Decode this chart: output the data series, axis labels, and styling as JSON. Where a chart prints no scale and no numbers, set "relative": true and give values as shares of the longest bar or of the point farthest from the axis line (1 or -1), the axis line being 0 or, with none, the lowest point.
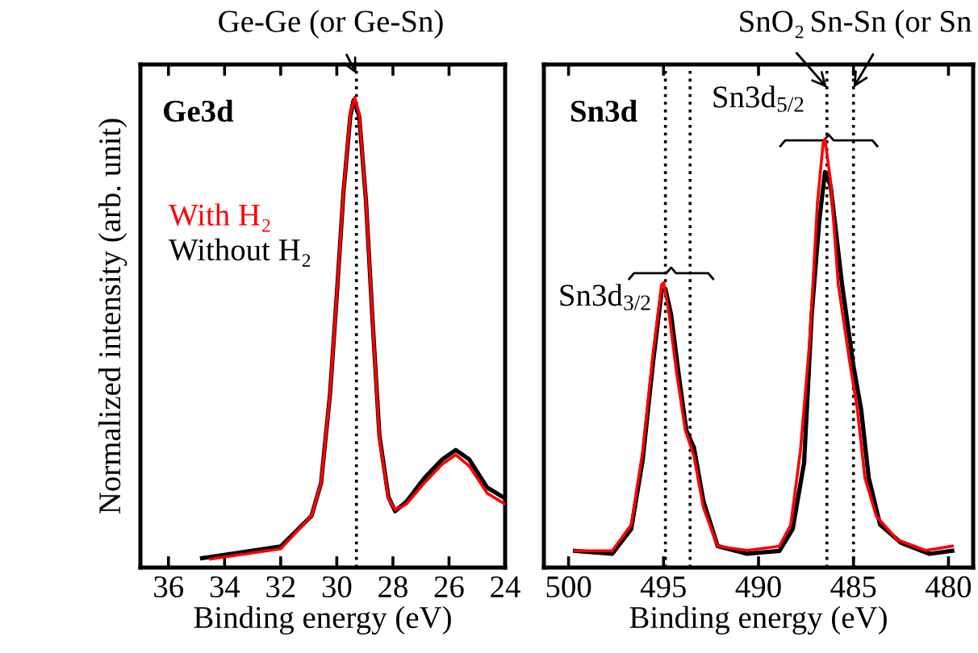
{
  "chart_data": [
    {
      "type": "line",
      "title": "Ge3d",
      "xlabel": "Binding energy (eV)",
      "ylabel": "Normalized intensity (arb. unit)",
      "relative": true,
      "xlim": [
        37,
        24
      ],
      "xticks": [
        36,
        34,
        32,
        30,
        28,
        26,
        24
      ],
      "tick_labels": "x",
      "legend": "left",
      "series": [
        {
          "name": "With H₂",
          "color": "#ff0000",
          "x": [
            34.5,
            32.0,
            30.9,
            30.56,
            30.24,
            30.0,
            29.76,
            29.52,
            29.36,
            29.2,
            28.96,
            28.72,
            28.48,
            28.16,
            27.92,
            27.52,
            26.88,
            26.24,
            25.76,
            25.28,
            24.64,
            24.0
          ],
          "values": [
            0.018,
            0.04,
            0.11,
            0.18,
            0.37,
            0.58,
            0.8,
            0.965,
            1.0,
            0.965,
            0.78,
            0.52,
            0.275,
            0.146,
            0.123,
            0.135,
            0.18,
            0.22,
            0.24,
            0.216,
            0.158,
            0.135
          ]
        },
        {
          "name": "Without H₂",
          "color": "#000000",
          "x": [
            34.8,
            32.0,
            30.9,
            30.56,
            30.24,
            30.0,
            29.76,
            29.52,
            29.4,
            29.2,
            28.96,
            28.72,
            28.48,
            28.16,
            27.92,
            27.52,
            26.88,
            26.24,
            25.76,
            25.28,
            24.64,
            24.0
          ],
          "values": [
            0.02,
            0.045,
            0.11,
            0.18,
            0.37,
            0.58,
            0.8,
            0.96,
            0.994,
            0.96,
            0.78,
            0.52,
            0.28,
            0.15,
            0.12,
            0.14,
            0.19,
            0.23,
            0.25,
            0.23,
            0.17,
            0.147
          ]
        }
      ],
      "ref_lines": [
        {
          "axis": "x",
          "value": 29.3,
          "color": "#000000",
          "line_style": "dotted"
        }
      ],
      "annotations": [
        {
          "text": "Ge-Ge (or Ge-Sn)",
          "x": 29.3,
          "y": 1.05
        }
      ]
    },
    {
      "type": "line",
      "title": "Sn3d",
      "xlabel": "Binding energy (eV)",
      "relative": true,
      "xlim": [
        501.3,
        478.7
      ],
      "xticks": [
        500,
        495,
        490,
        485,
        480
      ],
      "tick_labels": "x",
      "series": [
        {
          "color": "#ff0000",
          "x": [
            499.66,
            497.7,
            496.7,
            496.1,
            495.55,
            495.1,
            494.99,
            494.7,
            494.3,
            493.85,
            493.4,
            492.9,
            492.15,
            490.6,
            488.9,
            488.3,
            487.8,
            487.3,
            486.9,
            486.6,
            486.5,
            486.2,
            485.8,
            485.2,
            484.8,
            484.4,
            483.8,
            482.7,
            481.2,
            479.8
          ],
          "values": [
            0.039,
            0.039,
            0.1,
            0.27,
            0.5,
            0.66,
            0.665,
            0.59,
            0.45,
            0.32,
            0.26,
            0.14,
            0.05,
            0.04,
            0.05,
            0.1,
            0.27,
            0.53,
            0.85,
            0.99,
            1.0,
            0.9,
            0.66,
            0.48,
            0.37,
            0.21,
            0.12,
            0.065,
            0.04,
            0.05
          ]
        },
        {
          "color": "#000000",
          "x": [
            499.66,
            497.7,
            496.7,
            496.1,
            495.55,
            495.1,
            494.9,
            494.6,
            494.2,
            493.8,
            493.4,
            492.9,
            492.15,
            490.6,
            488.9,
            488.2,
            487.6,
            487.2,
            486.8,
            486.5,
            486.2,
            485.6,
            485.0,
            484.6,
            484.2,
            483.6,
            482.5,
            481.0,
            479.8
          ],
          "values": [
            0.039,
            0.032,
            0.09,
            0.25,
            0.48,
            0.645,
            0.65,
            0.59,
            0.45,
            0.32,
            0.28,
            0.155,
            0.05,
            0.032,
            0.039,
            0.09,
            0.245,
            0.59,
            0.81,
            0.923,
            0.89,
            0.66,
            0.47,
            0.37,
            0.21,
            0.1,
            0.058,
            0.032,
            0.039
          ]
        }
      ],
      "ref_lines": [
        {
          "axis": "x",
          "value": 494.9,
          "color": "#000000",
          "line_style": "dotted"
        },
        {
          "axis": "x",
          "value": 493.6,
          "color": "#000000",
          "line_style": "dotted"
        },
        {
          "axis": "x",
          "value": 486.4,
          "color": "#000000",
          "line_style": "dotted"
        },
        {
          "axis": "x",
          "value": 485.0,
          "color": "#000000",
          "line_style": "dotted"
        }
      ],
      "annotations": [
        {
          "text": "SnO₂",
          "x": 486.4,
          "y": 1.12
        },
        {
          "text": "Sn-Sn (or Sn",
          "x": 485.0,
          "y": 1.12
        },
        {
          "text": "Sn3d$_{5/2}$",
          "x": 486.3,
          "y": 1.01
        },
        {
          "text": "Sn3d$_{3/2}$",
          "x": 494.6,
          "y": 0.7
        }
      ]
    }
  ]
}
